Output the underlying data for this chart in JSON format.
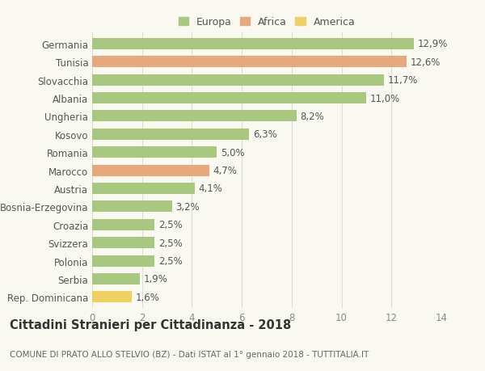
{
  "categories": [
    "Germania",
    "Tunisia",
    "Slovacchia",
    "Albania",
    "Ungheria",
    "Kosovo",
    "Romania",
    "Marocco",
    "Austria",
    "Bosnia-Erzegovina",
    "Croazia",
    "Svizzera",
    "Polonia",
    "Serbia",
    "Rep. Dominicana"
  ],
  "values": [
    12.9,
    12.6,
    11.7,
    11.0,
    8.2,
    6.3,
    5.0,
    4.7,
    4.1,
    3.2,
    2.5,
    2.5,
    2.5,
    1.9,
    1.6
  ],
  "labels": [
    "12,9%",
    "12,6%",
    "11,7%",
    "11,0%",
    "8,2%",
    "6,3%",
    "5,0%",
    "4,7%",
    "4,1%",
    "3,2%",
    "2,5%",
    "2,5%",
    "2,5%",
    "1,9%",
    "1,6%"
  ],
  "colors": [
    "#a8c880",
    "#e8a87c",
    "#a8c880",
    "#a8c880",
    "#a8c880",
    "#a8c880",
    "#a8c880",
    "#e8a87c",
    "#a8c880",
    "#a8c880",
    "#a8c880",
    "#a8c880",
    "#a8c880",
    "#a8c880",
    "#f0d060"
  ],
  "legend": {
    "Europa": "#a8c880",
    "Africa": "#e8a87c",
    "America": "#f0d060"
  },
  "xlim": [
    0,
    14
  ],
  "xticks": [
    0,
    2,
    4,
    6,
    8,
    10,
    12,
    14
  ],
  "title": "Cittadini Stranieri per Cittadinanza - 2018",
  "subtitle": "COMUNE DI PRATO ALLO STELVIO (BZ) - Dati ISTAT al 1° gennaio 2018 - TUTTITALIA.IT",
  "background_color": "#f9f9f2",
  "grid_color": "#ddddcc",
  "bar_height": 0.62,
  "label_fontsize": 8.5,
  "title_fontsize": 10.5,
  "subtitle_fontsize": 7.5,
  "ytick_fontsize": 8.5,
  "xtick_fontsize": 8.5
}
